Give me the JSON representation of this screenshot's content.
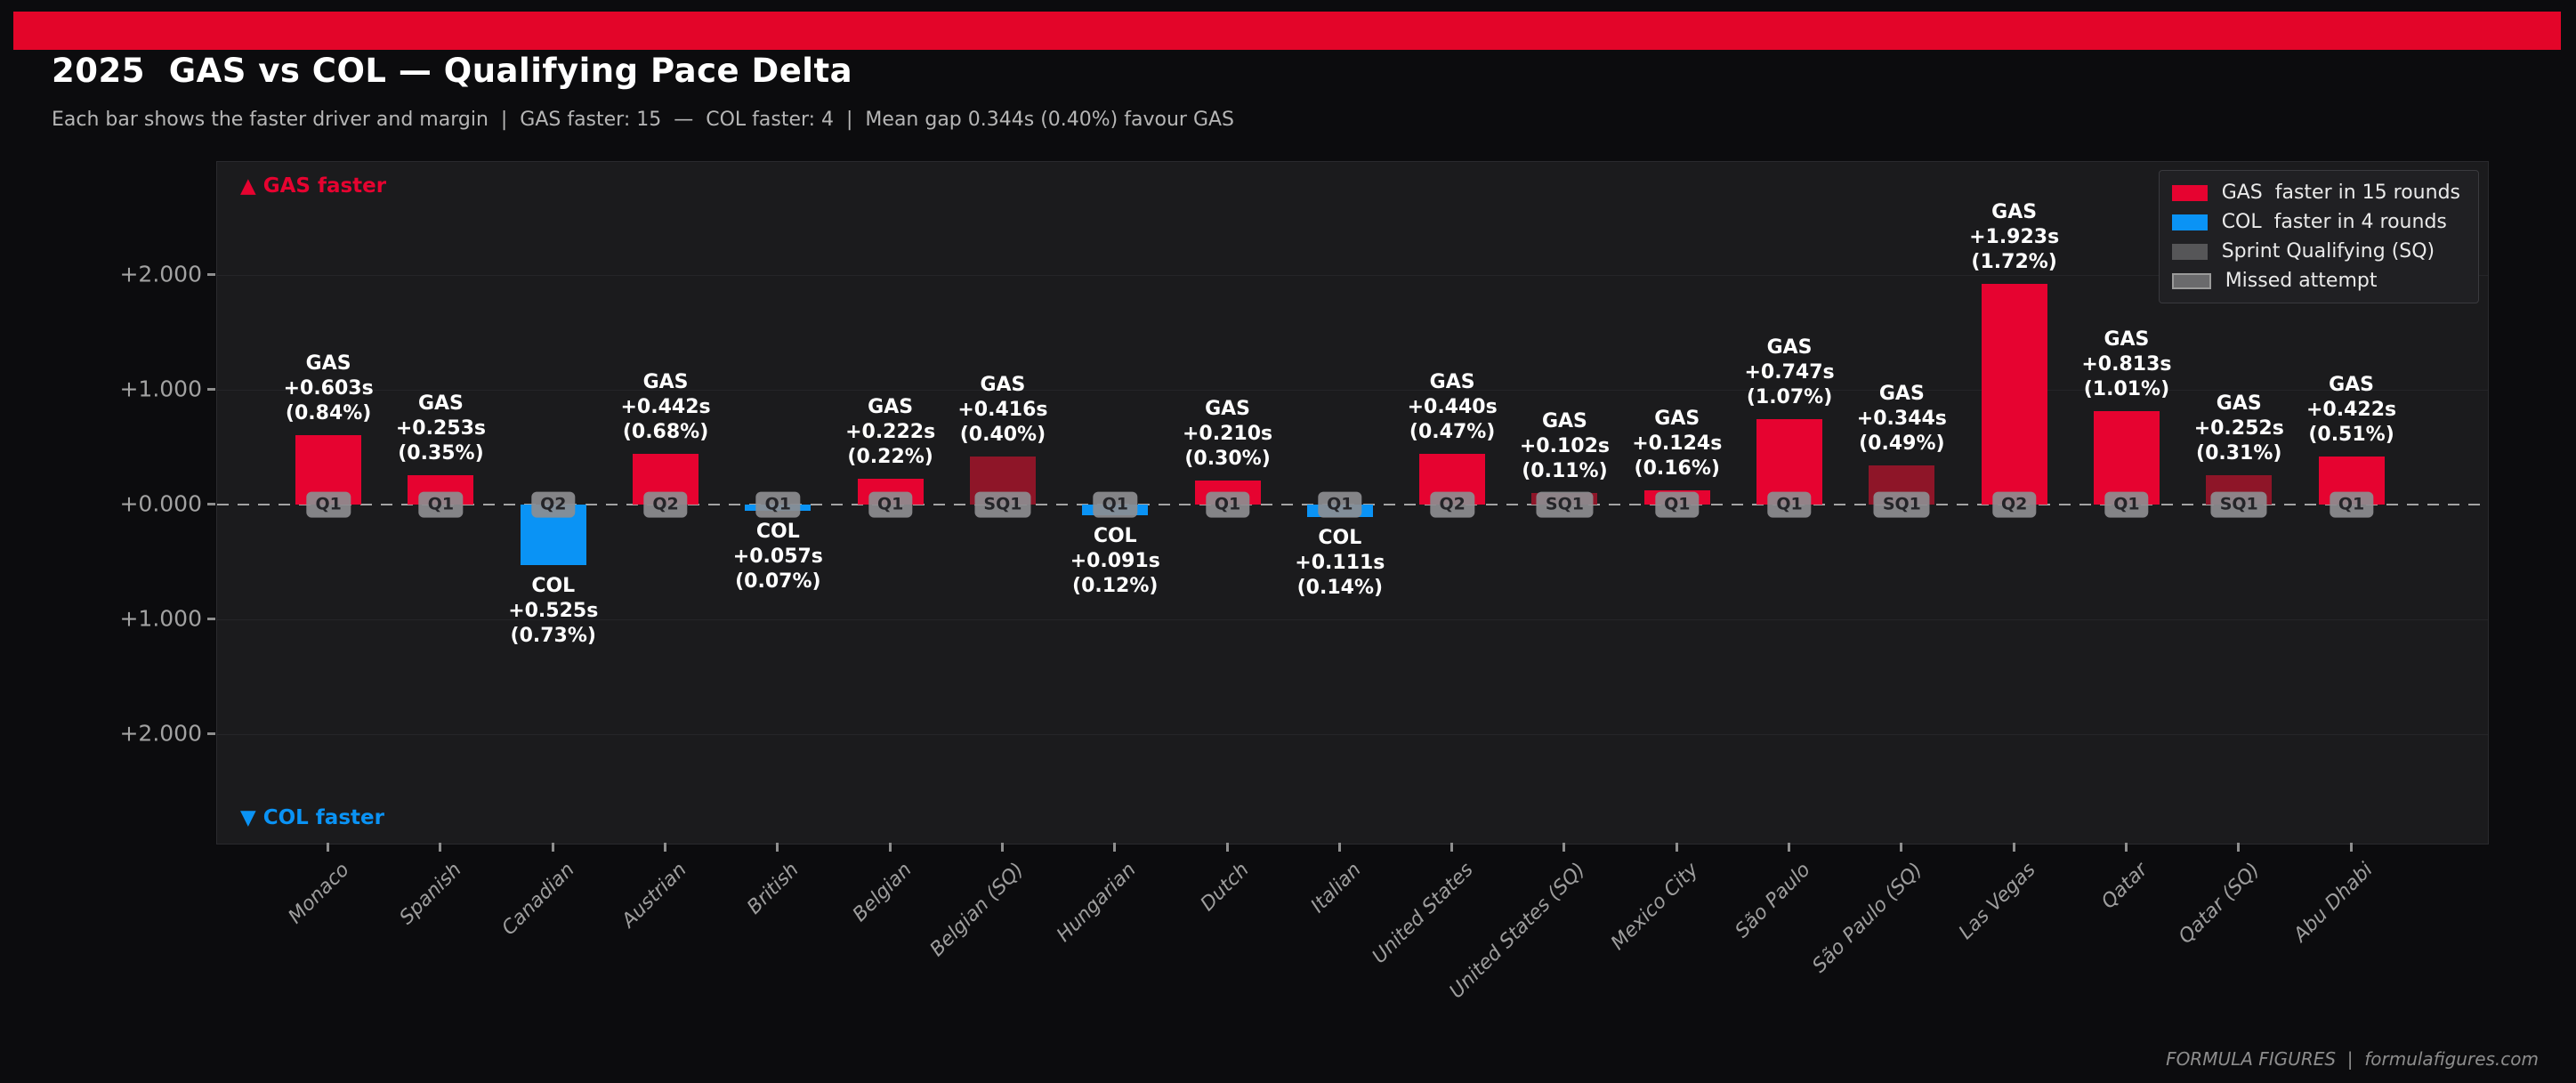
{
  "chart_data": {
    "type": "bar",
    "title": "2025  GAS vs COL — Qualifying Pace Delta",
    "subtitle": "Each bar shows the faster driver and margin  |  GAS faster: 15  —  COL faster: 4  |  Mean gap 0.344s (0.40%) favour GAS",
    "unit": "seconds",
    "ylim": [
      -2.95,
      2.98
    ],
    "grid": "horizontal-faint",
    "legend_position": "top-right",
    "yticks": [
      {
        "label": "+2.000",
        "value": 2
      },
      {
        "label": "+1.000",
        "value": 1
      },
      {
        "label": "+0.000",
        "value": 0
      },
      {
        "label": "+1.000",
        "value": -1
      },
      {
        "label": "+2.000",
        "value": -2
      }
    ],
    "annotations": {
      "gas_faster": "▲ GAS faster",
      "col_faster": "▼ COL faster"
    },
    "legend": [
      {
        "key": "gas",
        "label": "GAS  faster in 15 rounds"
      },
      {
        "key": "col",
        "label": "COL  faster in 4 rounds"
      },
      {
        "key": "sq",
        "label": "Sprint Qualifying (SQ)"
      },
      {
        "key": "missed",
        "label": "Missed attempt"
      }
    ],
    "colors": {
      "banner": "#e30529",
      "gas": "#e60330",
      "gas_sprint": "#8e1528",
      "col": "#0a93f5",
      "sq_legend": "#565658",
      "missed_fill": "#6a6a6c",
      "missed_border": "#9a9a9a",
      "zero_line": "#a4a4a4",
      "panel_bg": "#1b1b1d",
      "page_bg": "#0c0c0e"
    },
    "categories": [
      "Monaco",
      "Spanish",
      "Canadian",
      "Austrian",
      "British",
      "Belgian",
      "Belgian (SQ)",
      "Hungarian",
      "Dutch",
      "Italian",
      "United States",
      "United States (SQ)",
      "Mexico City",
      "São Paulo",
      "São Paulo (SQ)",
      "Las Vegas",
      "Qatar",
      "Qatar (SQ)",
      "Abu Dhabi"
    ],
    "rounds": [
      {
        "race": "Monaco",
        "faster": "GAS",
        "delta_s": 0.603,
        "delta_label": "+0.603s",
        "pct_label": "(0.84%)",
        "session": "Q1",
        "sprint": false
      },
      {
        "race": "Spanish",
        "faster": "GAS",
        "delta_s": 0.253,
        "delta_label": "+0.253s",
        "pct_label": "(0.35%)",
        "session": "Q1",
        "sprint": false
      },
      {
        "race": "Canadian",
        "faster": "COL",
        "delta_s": 0.525,
        "delta_label": "+0.525s",
        "pct_label": "(0.73%)",
        "session": "Q2",
        "sprint": false
      },
      {
        "race": "Austrian",
        "faster": "GAS",
        "delta_s": 0.442,
        "delta_label": "+0.442s",
        "pct_label": "(0.68%)",
        "session": "Q2",
        "sprint": false
      },
      {
        "race": "British",
        "faster": "COL",
        "delta_s": 0.057,
        "delta_label": "+0.057s",
        "pct_label": "(0.07%)",
        "session": "Q1",
        "sprint": false
      },
      {
        "race": "Belgian",
        "faster": "GAS",
        "delta_s": 0.222,
        "delta_label": "+0.222s",
        "pct_label": "(0.22%)",
        "session": "Q1",
        "sprint": false
      },
      {
        "race": "Belgian (SQ)",
        "faster": "GAS",
        "delta_s": 0.416,
        "delta_label": "+0.416s",
        "pct_label": "(0.40%)",
        "session": "SQ1",
        "sprint": true
      },
      {
        "race": "Hungarian",
        "faster": "COL",
        "delta_s": 0.091,
        "delta_label": "+0.091s",
        "pct_label": "(0.12%)",
        "session": "Q1",
        "sprint": false
      },
      {
        "race": "Dutch",
        "faster": "GAS",
        "delta_s": 0.21,
        "delta_label": "+0.210s",
        "pct_label": "(0.30%)",
        "session": "Q1",
        "sprint": false
      },
      {
        "race": "Italian",
        "faster": "COL",
        "delta_s": 0.111,
        "delta_label": "+0.111s",
        "pct_label": "(0.14%)",
        "session": "Q1",
        "sprint": false
      },
      {
        "race": "United States",
        "faster": "GAS",
        "delta_s": 0.44,
        "delta_label": "+0.440s",
        "pct_label": "(0.47%)",
        "session": "Q2",
        "sprint": false
      },
      {
        "race": "United States (SQ)",
        "faster": "GAS",
        "delta_s": 0.102,
        "delta_label": "+0.102s",
        "pct_label": "(0.11%)",
        "session": "SQ1",
        "sprint": true
      },
      {
        "race": "Mexico City",
        "faster": "GAS",
        "delta_s": 0.124,
        "delta_label": "+0.124s",
        "pct_label": "(0.16%)",
        "session": "Q1",
        "sprint": false
      },
      {
        "race": "São Paulo",
        "faster": "GAS",
        "delta_s": 0.747,
        "delta_label": "+0.747s",
        "pct_label": "(1.07%)",
        "session": "Q1",
        "sprint": false
      },
      {
        "race": "São Paulo (SQ)",
        "faster": "GAS",
        "delta_s": 0.344,
        "delta_label": "+0.344s",
        "pct_label": "(0.49%)",
        "session": "SQ1",
        "sprint": true
      },
      {
        "race": "Las Vegas",
        "faster": "GAS",
        "delta_s": 1.923,
        "delta_label": "+1.923s",
        "pct_label": "(1.72%)",
        "session": "Q2",
        "sprint": false
      },
      {
        "race": "Qatar",
        "faster": "GAS",
        "delta_s": 0.813,
        "delta_label": "+0.813s",
        "pct_label": "(1.01%)",
        "session": "Q1",
        "sprint": false
      },
      {
        "race": "Qatar (SQ)",
        "faster": "GAS",
        "delta_s": 0.252,
        "delta_label": "+0.252s",
        "pct_label": "(0.31%)",
        "session": "SQ1",
        "sprint": true
      },
      {
        "race": "Abu Dhabi",
        "faster": "GAS",
        "delta_s": 0.422,
        "delta_label": "+0.422s",
        "pct_label": "(0.51%)",
        "session": "Q1",
        "sprint": false
      }
    ],
    "summary": {
      "gas_faster_count": 15,
      "col_faster_count": 4,
      "mean_gap_s": 0.344,
      "mean_gap_pct": "0.40%",
      "favours": "GAS"
    }
  },
  "footer": {
    "text": "FORMULA FIGURES  |  formulafigures.com"
  }
}
